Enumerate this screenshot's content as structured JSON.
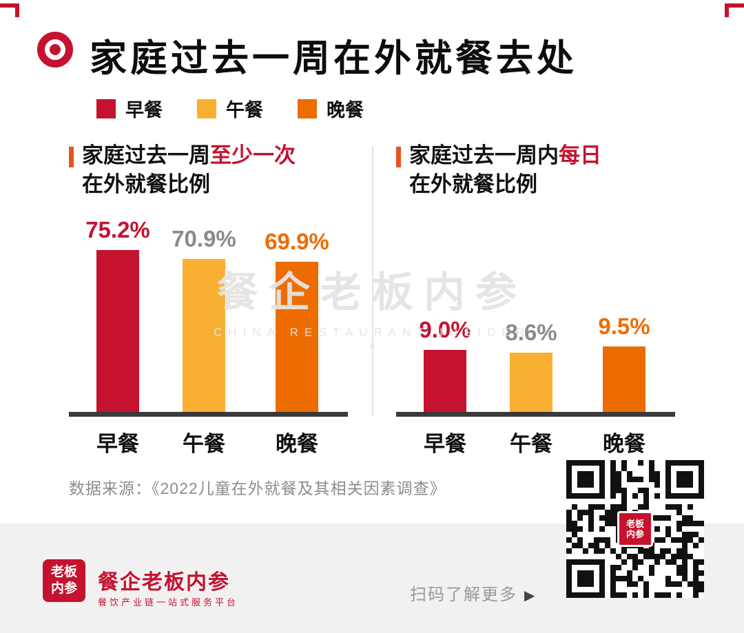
{
  "header": {
    "title": "家庭过去一周在外就餐去处"
  },
  "legend": {
    "items": [
      {
        "label": "早餐",
        "color": "#C4122F"
      },
      {
        "label": "午餐",
        "color": "#F9B032"
      },
      {
        "label": "晚餐",
        "color": "#ED6C00"
      }
    ]
  },
  "chart_data": [
    {
      "type": "bar",
      "title_prefix": "家庭过去一周",
      "title_highlight": "至少一次",
      "title_line2": "在外就餐比例",
      "categories": [
        "早餐",
        "午餐",
        "晚餐"
      ],
      "values": [
        75.2,
        70.9,
        69.9
      ],
      "value_labels": [
        "75.2%",
        "70.9%",
        "69.9%"
      ],
      "bar_colors": [
        "#C4122F",
        "#F9B032",
        "#ED6C00"
      ],
      "label_colors": [
        "#C4122F",
        "#8A8A8A",
        "#ED6C00"
      ],
      "xlabel": "",
      "ylabel": "",
      "ylim": [
        0,
        80
      ],
      "grid": false,
      "legend_position": "top"
    },
    {
      "type": "bar",
      "title_prefix": "家庭过去一周内",
      "title_highlight": "每日",
      "title_line2": "在外就餐比例",
      "categories": [
        "早餐",
        "午餐",
        "晚餐"
      ],
      "values": [
        9.0,
        8.6,
        9.5
      ],
      "value_labels": [
        "9.0%",
        "8.6%",
        "9.5%"
      ],
      "bar_colors": [
        "#C4122F",
        "#F9B032",
        "#ED6C00"
      ],
      "label_colors": [
        "#C4122F",
        "#8A8A8A",
        "#ED6C00"
      ],
      "xlabel": "",
      "ylabel": "",
      "ylim": [
        0,
        25
      ],
      "grid": false,
      "legend_position": "top"
    }
  ],
  "source": {
    "text": "数据来源：《2022儿童在外就餐及其相关因素调查》"
  },
  "watermark": {
    "text": "餐企老板内参",
    "subtext": "CHINA RESTAURANT INSIDER",
    "star": "★"
  },
  "footer": {
    "logo_top": "老板",
    "logo_bottom": "内参",
    "brand": "餐企老板内参",
    "tagline": "餐饮产业链一站式服务平台",
    "scan_text": "扫码了解更多",
    "scan_arrow": "▶"
  },
  "colors": {
    "brand_red": "#C4122F",
    "lunch_yellow": "#F9B032",
    "dinner_orange": "#ED6C00",
    "accent_orange": "#E8541E",
    "gray_label": "#8A8A8A",
    "footer_bg": "#F1F1F1"
  }
}
